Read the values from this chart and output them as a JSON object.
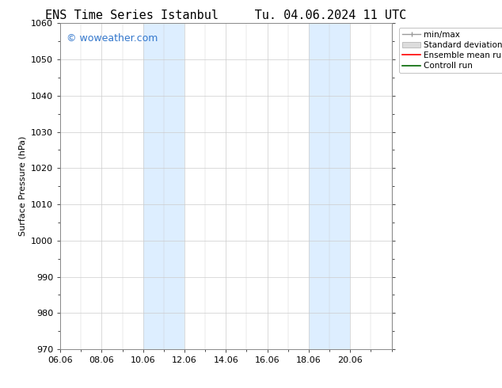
{
  "title_left": "ENS Time Series Istanbul",
  "title_right": "Tu. 04.06.2024 11 UTC",
  "ylabel": "Surface Pressure (hPa)",
  "ylim": [
    970,
    1060
  ],
  "yticks": [
    970,
    980,
    990,
    1000,
    1010,
    1020,
    1030,
    1040,
    1050,
    1060
  ],
  "xtick_labels": [
    "06.06",
    "08.06",
    "10.06",
    "12.06",
    "14.06",
    "16.06",
    "18.06",
    "20.06"
  ],
  "xmin": 0.0,
  "xmax": 16.0,
  "shaded_bands": [
    {
      "xstart": 4.0,
      "xend": 6.0
    },
    {
      "xstart": 12.0,
      "xend": 14.0
    }
  ],
  "shaded_color": "#ddeeff",
  "background_color": "#ffffff",
  "grid_color": "#cccccc",
  "watermark_text": "© woweather.com",
  "watermark_color": "#3377cc",
  "watermark_fontsize": 9,
  "legend_items": [
    {
      "label": "min/max",
      "color": "#aaaaaa",
      "style": "minmax"
    },
    {
      "label": "Standard deviation",
      "color": "#cccccc",
      "style": "stddev"
    },
    {
      "label": "Ensemble mean run",
      "color": "#ff0000",
      "style": "line"
    },
    {
      "label": "Controll run",
      "color": "#006600",
      "style": "line"
    }
  ],
  "title_fontsize": 11,
  "axis_fontsize": 8,
  "tick_fontsize": 8,
  "legend_fontsize": 7.5
}
